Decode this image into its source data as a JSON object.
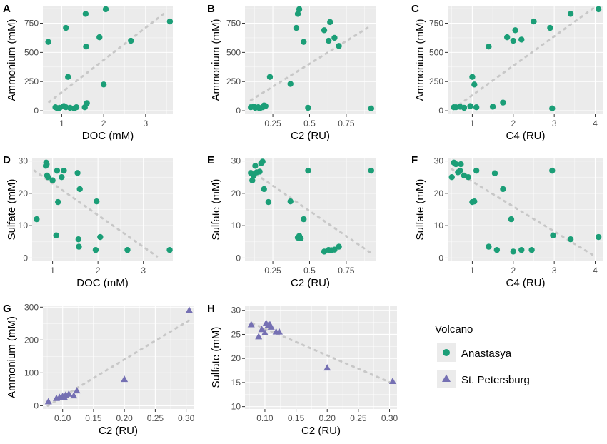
{
  "colors": {
    "Anastasya": "#1b9e77",
    "St. Petersburg": "#7570b3",
    "trend": "#c8c8c8",
    "panel_background": "#ebebeb",
    "grid": "#ffffff"
  },
  "legend": {
    "title": "Volcano",
    "items": [
      {
        "label": "Anastasya",
        "shape": "circle",
        "color": "#1b9e77"
      },
      {
        "label": "St. Petersburg",
        "shape": "triangle",
        "color": "#7570b3"
      }
    ]
  },
  "chart_data": [
    {
      "panel": "A",
      "type": "scatter",
      "xlabel": "DOC (mM)",
      "ylabel": "Ammonium (mM)",
      "xlim": [
        0.55,
        3.65
      ],
      "ylim": [
        -30,
        900
      ],
      "xticks": [
        1,
        2,
        3
      ],
      "yticks": [
        0,
        250,
        500,
        750
      ],
      "trend": {
        "from": [
          0.7,
          75
        ],
        "to": [
          3.5,
          850
        ]
      },
      "series": [
        {
          "name": "Anastasya",
          "points": [
            [
              0.68,
              590
            ],
            [
              0.85,
              30
            ],
            [
              0.9,
              20
            ],
            [
              0.95,
              25
            ],
            [
              1.05,
              40
            ],
            [
              1.1,
              710
            ],
            [
              1.15,
              290
            ],
            [
              1.1,
              30
            ],
            [
              1.2,
              25
            ],
            [
              1.3,
              20
            ],
            [
              1.35,
              30
            ],
            [
              1.55,
              30
            ],
            [
              1.57,
              830
            ],
            [
              1.6,
              65
            ],
            [
              1.58,
              550
            ],
            [
              1.9,
              630
            ],
            [
              2.0,
              225
            ],
            [
              2.05,
              870
            ],
            [
              2.65,
              600
            ],
            [
              3.58,
              765
            ]
          ]
        }
      ]
    },
    {
      "panel": "B",
      "type": "scatter",
      "xlabel": "C2 (RU)",
      "ylabel": "Ammonium (mM)",
      "xlim": [
        0.06,
        0.95
      ],
      "ylim": [
        -30,
        900
      ],
      "xticks": [
        0.25,
        0.5,
        0.75
      ],
      "yticks": [
        0,
        250,
        500,
        750
      ],
      "trend": {
        "from": [
          0.1,
          90
        ],
        "to": [
          0.92,
          730
        ]
      },
      "series": [
        {
          "name": "Anastasya",
          "points": [
            [
              0.1,
              30
            ],
            [
              0.12,
              35
            ],
            [
              0.13,
              25
            ],
            [
              0.15,
              30
            ],
            [
              0.16,
              20
            ],
            [
              0.18,
              30
            ],
            [
              0.19,
              45
            ],
            [
              0.2,
              40
            ],
            [
              0.23,
              290
            ],
            [
              0.37,
              230
            ],
            [
              0.41,
              710
            ],
            [
              0.42,
              830
            ],
            [
              0.43,
              870
            ],
            [
              0.46,
              590
            ],
            [
              0.49,
              25
            ],
            [
              0.6,
              690
            ],
            [
              0.63,
              600
            ],
            [
              0.64,
              760
            ],
            [
              0.67,
              625
            ],
            [
              0.7,
              555
            ],
            [
              0.92,
              20
            ]
          ]
        }
      ]
    },
    {
      "panel": "C",
      "type": "scatter",
      "xlabel": "C4 (RU)",
      "ylabel": "Ammonium (mM)",
      "xlim": [
        0.4,
        4.2
      ],
      "ylim": [
        -30,
        900
      ],
      "xticks": [
        1,
        2,
        3,
        4
      ],
      "yticks": [
        0,
        250,
        500,
        750
      ],
      "trend": {
        "from": [
          0.55,
          20
        ],
        "to": [
          4.0,
          890
        ]
      },
      "series": [
        {
          "name": "Anastasya",
          "points": [
            [
              0.55,
              30
            ],
            [
              0.6,
              30
            ],
            [
              0.7,
              35
            ],
            [
              0.8,
              25
            ],
            [
              0.95,
              40
            ],
            [
              1.0,
              290
            ],
            [
              1.05,
              225
            ],
            [
              1.1,
              30
            ],
            [
              1.4,
              550
            ],
            [
              1.5,
              35
            ],
            [
              1.75,
              70
            ],
            [
              1.85,
              630
            ],
            [
              2.0,
              600
            ],
            [
              2.05,
              690
            ],
            [
              2.2,
              610
            ],
            [
              2.5,
              765
            ],
            [
              2.9,
              710
            ],
            [
              2.95,
              20
            ],
            [
              3.4,
              830
            ],
            [
              4.08,
              870
            ]
          ]
        }
      ]
    },
    {
      "panel": "D",
      "type": "scatter",
      "xlabel": "DOC (mM)",
      "ylabel": "Sulfate (mM)",
      "xlim": [
        0.55,
        3.65
      ],
      "ylim": [
        -1,
        31
      ],
      "xticks": [
        1,
        2,
        3
      ],
      "yticks": [
        0,
        10,
        20,
        30
      ],
      "trend": {
        "from": [
          0.6,
          27
        ],
        "to": [
          3.3,
          0.5
        ]
      },
      "series": [
        {
          "name": "Anastasya",
          "points": [
            [
              0.65,
              12
            ],
            [
              0.85,
              28.5
            ],
            [
              0.86,
              29.5
            ],
            [
              0.87,
              29
            ],
            [
              0.88,
              25.5
            ],
            [
              0.9,
              25
            ],
            [
              1.0,
              24
            ],
            [
              1.08,
              7
            ],
            [
              1.1,
              27
            ],
            [
              1.12,
              17.3
            ],
            [
              1.2,
              25
            ],
            [
              1.25,
              27
            ],
            [
              1.55,
              26.3
            ],
            [
              1.57,
              5.8
            ],
            [
              1.58,
              3.5
            ],
            [
              1.6,
              21.3
            ],
            [
              1.95,
              2.5
            ],
            [
              1.97,
              17.5
            ],
            [
              2.05,
              6.5
            ],
            [
              2.65,
              2.5
            ],
            [
              3.58,
              2.5
            ]
          ]
        }
      ]
    },
    {
      "panel": "E",
      "type": "scatter",
      "xlabel": "C2 (RU)",
      "ylabel": "Sulfate (mM)",
      "xlim": [
        0.06,
        0.95
      ],
      "ylim": [
        -1,
        31
      ],
      "xticks": [
        0.25,
        0.5,
        0.75
      ],
      "yticks": [
        0,
        10,
        20,
        30
      ],
      "trend": {
        "from": [
          0.1,
          27
        ],
        "to": [
          0.92,
          1.5
        ]
      },
      "series": [
        {
          "name": "Anastasya",
          "points": [
            [
              0.1,
              26.3
            ],
            [
              0.11,
              24
            ],
            [
              0.12,
              25.5
            ],
            [
              0.13,
              28.5
            ],
            [
              0.14,
              26.5
            ],
            [
              0.16,
              26.7
            ],
            [
              0.17,
              29.3
            ],
            [
              0.18,
              29.8
            ],
            [
              0.19,
              21.3
            ],
            [
              0.22,
              17.3
            ],
            [
              0.37,
              17.5
            ],
            [
              0.42,
              6.3
            ],
            [
              0.43,
              6.8
            ],
            [
              0.44,
              6.1
            ],
            [
              0.46,
              12
            ],
            [
              0.49,
              27
            ],
            [
              0.6,
              2
            ],
            [
              0.63,
              2.5
            ],
            [
              0.65,
              2.4
            ],
            [
              0.67,
              2.6
            ],
            [
              0.7,
              3.5
            ],
            [
              0.92,
              27
            ]
          ]
        }
      ]
    },
    {
      "panel": "F",
      "type": "scatter",
      "xlabel": "C4 (RU)",
      "ylabel": "Sulfate (mM)",
      "xlim": [
        0.4,
        4.2
      ],
      "ylim": [
        -1,
        31
      ],
      "xticks": [
        1,
        2,
        3,
        4
      ],
      "yticks": [
        0,
        10,
        20,
        30
      ],
      "trend": {
        "from": [
          0.5,
          27.5
        ],
        "to": [
          4.0,
          0.5
        ]
      },
      "series": [
        {
          "name": "Anastasya",
          "points": [
            [
              0.5,
              25
            ],
            [
              0.55,
              29.5
            ],
            [
              0.6,
              29
            ],
            [
              0.65,
              26.5
            ],
            [
              0.7,
              27
            ],
            [
              0.72,
              29
            ],
            [
              0.8,
              25.5
            ],
            [
              0.9,
              25
            ],
            [
              1.0,
              17.3
            ],
            [
              1.05,
              17.5
            ],
            [
              1.1,
              27
            ],
            [
              1.4,
              3.5
            ],
            [
              1.55,
              26.2
            ],
            [
              1.75,
              21.3
            ],
            [
              1.95,
              12
            ],
            [
              2.0,
              2
            ],
            [
              1.6,
              2.5
            ],
            [
              2.2,
              2.5
            ],
            [
              2.45,
              2.5
            ],
            [
              2.95,
              27
            ],
            [
              2.97,
              7
            ],
            [
              3.4,
              5.8
            ],
            [
              4.08,
              6.5
            ]
          ]
        }
      ]
    },
    {
      "panel": "G",
      "type": "scatter",
      "xlabel": "C2 (RU)",
      "ylabel": "Ammonium (mM)",
      "xlim": [
        0.068,
        0.312
      ],
      "ylim": [
        -10,
        305
      ],
      "xticks": [
        0.1,
        0.15,
        0.2,
        0.25,
        0.3
      ],
      "yticks": [
        0,
        100,
        200,
        300
      ],
      "trend": {
        "from": [
          0.076,
          0
        ],
        "to": [
          0.305,
          260
        ]
      },
      "series": [
        {
          "name": "St. Petersburg",
          "points": [
            [
              0.077,
              12
            ],
            [
              0.09,
              22
            ],
            [
              0.095,
              25
            ],
            [
              0.1,
              28
            ],
            [
              0.103,
              24
            ],
            [
              0.105,
              32
            ],
            [
              0.11,
              35
            ],
            [
              0.118,
              30
            ],
            [
              0.123,
              45
            ],
            [
              0.2,
              80
            ],
            [
              0.305,
              290
            ]
          ]
        }
      ]
    },
    {
      "panel": "H",
      "type": "scatter",
      "xlabel": "C2 (RU)",
      "ylabel": "Sulfate (mM)",
      "xlim": [
        0.068,
        0.312
      ],
      "ylim": [
        9.5,
        31
      ],
      "xticks": [
        0.1,
        0.15,
        0.2,
        0.25,
        0.3
      ],
      "yticks": [
        10,
        15,
        20,
        25,
        30
      ],
      "trend": {
        "from": [
          0.08,
          27.3
        ],
        "to": [
          0.305,
          14.8
        ]
      },
      "series": [
        {
          "name": "St. Petersburg",
          "points": [
            [
              0.078,
              27
            ],
            [
              0.09,
              24.5
            ],
            [
              0.095,
              26
            ],
            [
              0.1,
              25.3
            ],
            [
              0.102,
              27.3
            ],
            [
              0.105,
              26.8
            ],
            [
              0.108,
              27
            ],
            [
              0.11,
              26.5
            ],
            [
              0.118,
              25.5
            ],
            [
              0.123,
              25.5
            ],
            [
              0.2,
              18
            ],
            [
              0.305,
              15.2
            ]
          ]
        }
      ]
    }
  ]
}
